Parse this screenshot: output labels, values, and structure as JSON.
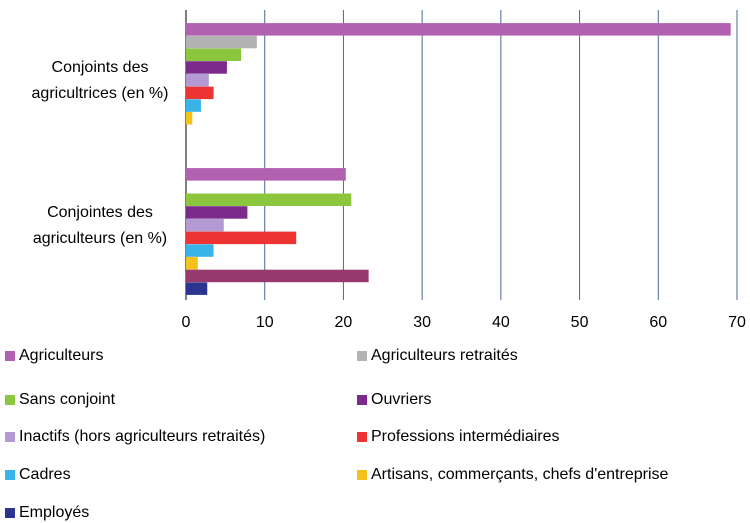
{
  "chart_data": {
    "type": "bar",
    "orientation": "horizontal",
    "categories": [
      "Conjoints des agricultrices (en %)",
      "Conjointes des agriculteurs (en %)"
    ],
    "series": [
      {
        "name": "Agriculteurs",
        "color": "#b260b0",
        "values": [
          69.2,
          20.3
        ]
      },
      {
        "name": "Agriculteurs retraités",
        "color": "#b3b3b3",
        "values": [
          9,
          null
        ]
      },
      {
        "name": "Sans conjoint",
        "color": "#8cc63f",
        "values": [
          7,
          21
        ]
      },
      {
        "name": "Ouvriers",
        "color": "#7b2a8c",
        "values": [
          5.2,
          7.8
        ]
      },
      {
        "name": "Inactifs (hors agriculteurs retraités)",
        "color": "#b49ad2",
        "values": [
          2.9,
          4.8
        ]
      },
      {
        "name": "Professions intermédiaires",
        "color": "#ee3333",
        "values": [
          3.5,
          14
        ]
      },
      {
        "name": "Cadres",
        "color": "#38b4e8",
        "values": [
          1.9,
          3.5
        ]
      },
      {
        "name": "Artisans, commerçants, chefs d'entreprise",
        "color": "#f5c21c",
        "values": [
          0.8,
          1.5
        ]
      },
      {
        "name": null,
        "color": "#963a6e",
        "values": [
          null,
          23.2
        ]
      },
      {
        "name": "Employés",
        "color": "#2b3590",
        "values": [
          null,
          2.7
        ]
      }
    ],
    "xlim": [
      0,
      70
    ],
    "xticks": [
      0,
      10,
      20,
      30,
      40,
      50,
      60,
      70
    ],
    "grid": true
  }
}
